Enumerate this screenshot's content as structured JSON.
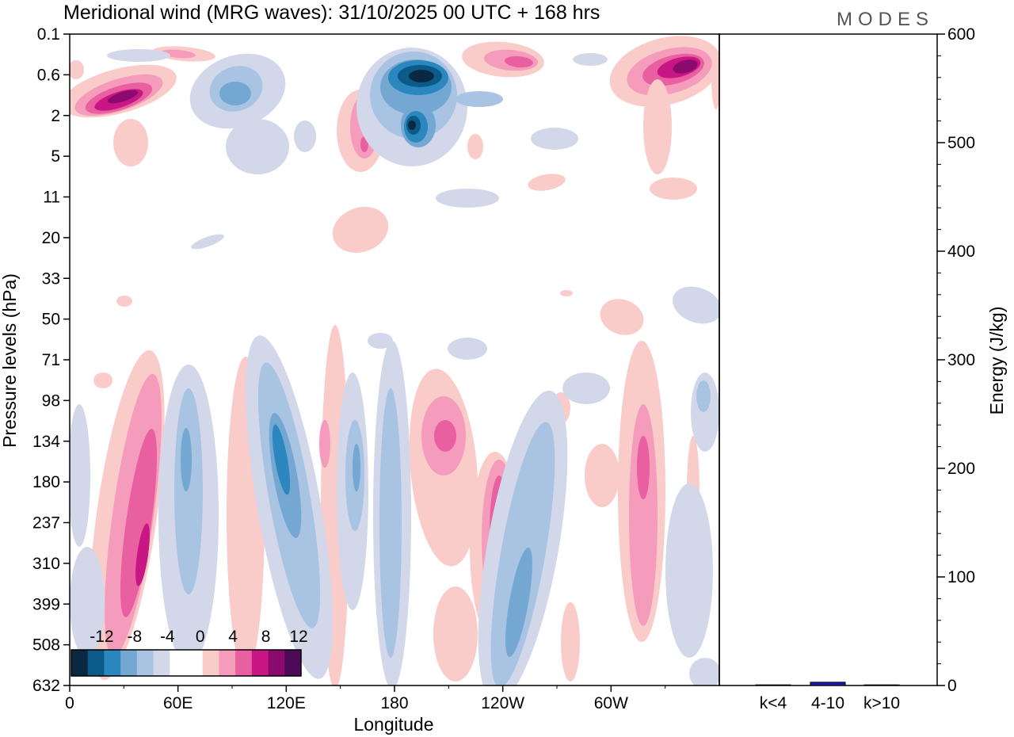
{
  "chart_data": {
    "type": "heatmap",
    "title": "Meridional wind (MRG waves):  31/10/2025  00 UTC  + 168 hrs",
    "logo": "MODES",
    "xlabel": "Longitude",
    "ylabel": "Pressure levels (hPa)",
    "x_ticks": [
      "0",
      "60E",
      "120E",
      "180",
      "120W",
      "60W"
    ],
    "y_ticks": [
      "0.1",
      "0.6",
      "2",
      "5",
      "11",
      "20",
      "33",
      "50",
      "71",
      "98",
      "134",
      "180",
      "237",
      "310",
      "399",
      "508",
      "632"
    ],
    "colorbar": {
      "labels": [
        "-12",
        "-8",
        "-4",
        "0",
        "4",
        "8",
        "12"
      ],
      "colors": [
        "#08293f",
        "#0b5a8a",
        "#2d87bf",
        "#74a8d3",
        "#a9c3e2",
        "#d3d7ea",
        "#ffffff",
        "#ffffff",
        "#f9cbc9",
        "#f59cbc",
        "#e8609f",
        "#c81784",
        "#8b0a6e",
        "#4d0b57"
      ]
    },
    "energy_panel": {
      "ylabel": "Energy (J/kg)",
      "ylim": [
        0,
        600
      ],
      "y_ticks": [
        "0",
        "100",
        "200",
        "300",
        "400",
        "500",
        "600"
      ],
      "categories": [
        "k<4",
        "4-10",
        "k>10"
      ],
      "values": [
        0,
        3,
        0
      ],
      "bar_colors": [
        "#1b1bb0",
        "#1b1bb0",
        "#1b1bb0"
      ]
    },
    "features": [
      {
        "name": "strat-positive-west",
        "lon": 30,
        "level": "1",
        "value": 12
      },
      {
        "name": "strat-negative-dateline",
        "lon": 190,
        "level": "0.6",
        "value": -12
      },
      {
        "name": "strat-negative-dateline-low",
        "lon": 190,
        "level": "2",
        "value": -12
      },
      {
        "name": "strat-positive-east",
        "lon": 345,
        "level": "0.6",
        "value": 12
      },
      {
        "name": "trop-positive-40E",
        "lon": 40,
        "level": "310",
        "value": 10
      },
      {
        "name": "trop-negative-120E",
        "lon": 124,
        "level": "134",
        "value": -10
      },
      {
        "name": "trop-positive-120W",
        "lon": 240,
        "level": "237",
        "value": 10
      },
      {
        "name": "trop-negative-110W",
        "lon": 252,
        "level": "399",
        "value": -8
      }
    ]
  }
}
